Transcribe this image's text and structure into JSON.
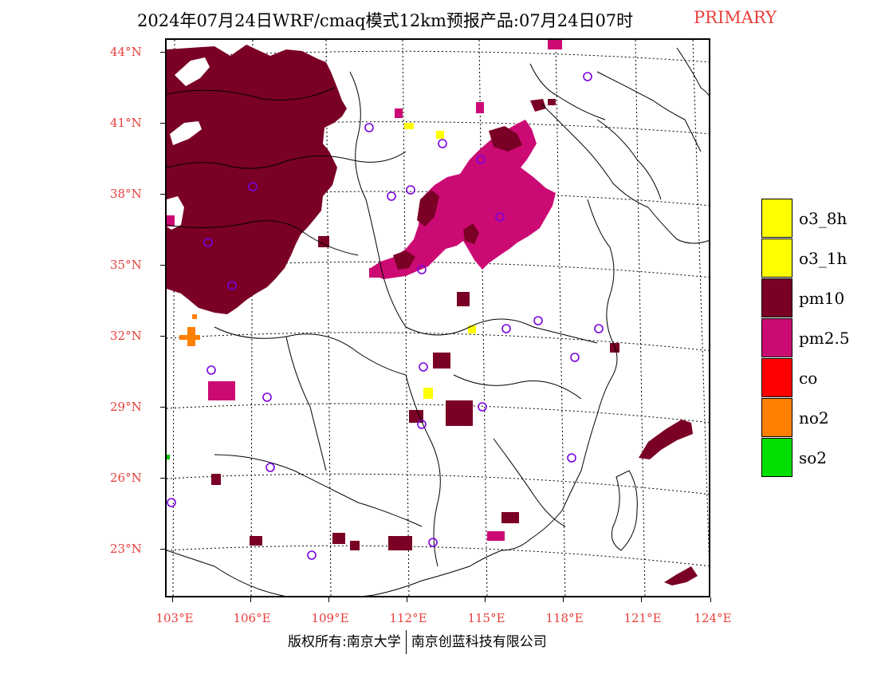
{
  "header": {
    "title": "2024年07月24日WRF/cmaq模式12km预报产品:07月24日07时",
    "mode_label": "PRIMARY"
  },
  "axes": {
    "lat_labels": [
      "44°N",
      "41°N",
      "38°N",
      "35°N",
      "32°N",
      "29°N",
      "26°N",
      "23°N"
    ],
    "lon_labels": [
      "103°E",
      "106°E",
      "109°E",
      "112°E",
      "115°E",
      "118°E",
      "121°E",
      "124°E"
    ]
  },
  "legend": {
    "items": [
      {
        "label": "o3_8h",
        "color": "#ffff00"
      },
      {
        "label": "o3_1h",
        "color": "#ffff00"
      },
      {
        "label": "pm10",
        "color": "#7a0025"
      },
      {
        "label": "pm2.5",
        "color": "#cc0a74"
      },
      {
        "label": "co",
        "color": "#ff0000"
      },
      {
        "label": "no2",
        "color": "#ff7f00"
      },
      {
        "label": "so2",
        "color": "#00e000"
      }
    ]
  },
  "footer": {
    "copyright": "版权所有:南京大学",
    "company": "南京创蓝科技有限公司"
  }
}
